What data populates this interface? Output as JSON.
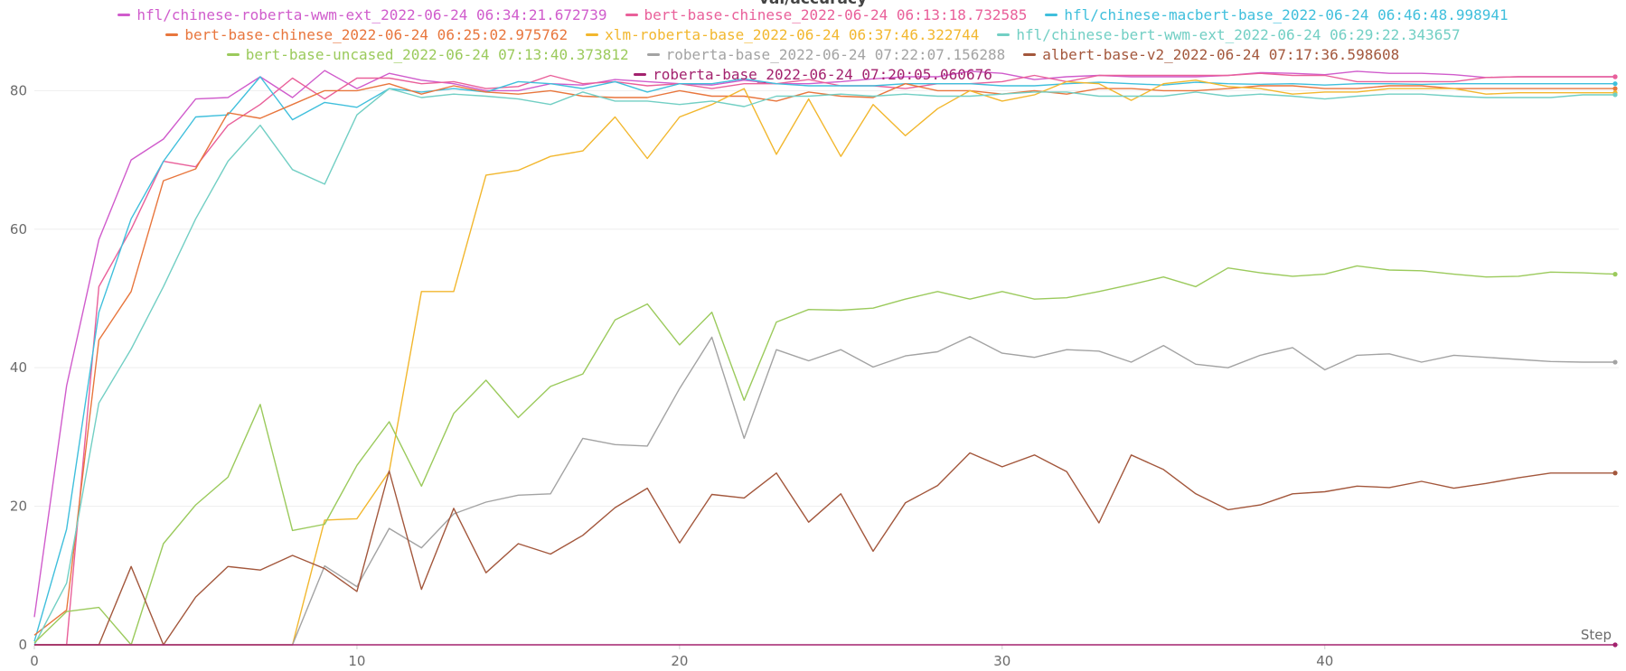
{
  "chart_data": {
    "type": "line",
    "title": "val/accuracy",
    "x_label": "Step",
    "x": [
      0,
      1,
      2,
      3,
      4,
      5,
      6,
      7,
      8,
      9,
      10,
      11,
      12,
      13,
      14,
      15,
      16,
      17,
      18,
      19,
      20,
      21,
      22,
      23,
      24,
      25,
      26,
      27,
      28,
      29,
      30,
      31,
      32,
      33,
      34,
      35,
      36,
      37,
      38,
      39,
      40,
      41,
      42,
      43,
      44,
      45,
      46,
      47,
      48,
      49
    ],
    "xlim": [
      0,
      49
    ],
    "xticks": [
      0,
      10,
      20,
      30,
      40
    ],
    "ylim": [
      0,
      85
    ],
    "yticks": [
      0,
      20,
      40,
      60,
      80
    ],
    "grid": true,
    "series": [
      {
        "name": "hfl/chinese-roberta-wwm-ext_2022-06-24 06:34:21.672739",
        "color": "#d05ccc",
        "values": [
          4,
          37.4,
          58.5,
          70,
          73,
          78.8,
          79,
          82,
          79,
          82.9,
          80.3,
          82.5,
          81.5,
          81,
          80,
          80,
          81,
          80.8,
          81.6,
          81.3,
          81,
          80.8,
          81.5,
          81,
          81,
          81.3,
          81.7,
          82,
          82,
          82.8,
          82.5,
          81.6,
          82,
          82.2,
          82,
          82,
          82,
          82.2,
          82.6,
          82.5,
          82.3,
          82.8,
          82.5,
          82.5,
          82.3,
          81.9,
          82,
          82,
          82,
          82
        ]
      },
      {
        "name": "bert-base-chinese_2022-06-24 06:13:18.732585",
        "color": "#e9609a",
        "values": [
          0,
          0,
          51.7,
          60,
          69.8,
          69,
          75,
          78,
          81.8,
          78.8,
          81.8,
          81.8,
          81,
          81.3,
          80.3,
          80.6,
          82.2,
          81,
          81.3,
          80.7,
          81,
          80.3,
          81,
          81,
          81.6,
          80.7,
          80.7,
          80.3,
          81,
          81,
          81.3,
          82.2,
          81.3,
          82.2,
          82.2,
          82.2,
          82.2,
          82.2,
          82.5,
          82.2,
          82.2,
          81.3,
          81.3,
          81.3,
          81.3,
          81.9,
          82,
          82,
          82,
          82
        ]
      },
      {
        "name": "hfl/chinese-macbert-base_2022-06-24 06:46:48.998941",
        "color": "#3fbfdc",
        "values": [
          0.5,
          16.7,
          48,
          61.5,
          69.8,
          76.2,
          76.5,
          82,
          75.8,
          78.3,
          77.6,
          80.3,
          79.8,
          80.3,
          79.8,
          81.3,
          81,
          80.3,
          81.3,
          79.8,
          81,
          81,
          81.7,
          81,
          80.7,
          80.7,
          80.7,
          81,
          81,
          81,
          80.7,
          80.7,
          81,
          81.2,
          81,
          80.8,
          81.2,
          81,
          80.9,
          81,
          80.8,
          81,
          81,
          80.9,
          81,
          81,
          81,
          81,
          81,
          81
        ]
      },
      {
        "name": "bert-base-chinese_2022-06-24 06:25:02.975762",
        "color": "#e8763d",
        "values": [
          1.4,
          5,
          44,
          51,
          67,
          68.7,
          76.8,
          76,
          78,
          80,
          80,
          81,
          79.5,
          80.7,
          79.8,
          79.5,
          80,
          79.2,
          79,
          79,
          80,
          79.2,
          79.2,
          78.5,
          79.8,
          79.2,
          79,
          81,
          80,
          80,
          79.5,
          80,
          79.5,
          80.3,
          80.3,
          80,
          80,
          80.3,
          80.7,
          80.7,
          80.3,
          80.3,
          80.7,
          80.7,
          80.3,
          80.3,
          80.3,
          80.3,
          80.3,
          80.3
        ]
      },
      {
        "name": "xlm-roberta-base_2022-06-24 06:37:46.322744",
        "color": "#f2b72e",
        "values": [
          0,
          0,
          0,
          0,
          0,
          0,
          0,
          0,
          0,
          18,
          18.2,
          25,
          51,
          51,
          67.8,
          68.5,
          70.5,
          71.3,
          76.2,
          70.2,
          76.2,
          78,
          80.3,
          70.8,
          78.8,
          70.5,
          78,
          73.5,
          77.4,
          80,
          78.5,
          79.4,
          81.3,
          81,
          78.6,
          81,
          81.5,
          80.6,
          80.3,
          79.5,
          79.8,
          79.8,
          80.3,
          80.3,
          80.3,
          79.5,
          79.7,
          79.7,
          79.7,
          79.7
        ]
      },
      {
        "name": "hfl/chinese-bert-wwm-ext_2022-06-24 06:29:22.343657",
        "color": "#72cfc4",
        "values": [
          0,
          8.9,
          34.9,
          42.7,
          51.7,
          61.5,
          69.8,
          75,
          68.6,
          66.5,
          76.5,
          80.3,
          79,
          79.5,
          79.2,
          78.8,
          78,
          79.8,
          78.5,
          78.5,
          78,
          78.5,
          77.7,
          79.2,
          79.2,
          79.5,
          79.2,
          79.5,
          79.2,
          79.2,
          79.5,
          79.8,
          79.8,
          79.2,
          79.2,
          79.2,
          79.8,
          79.2,
          79.5,
          79.2,
          78.8,
          79.2,
          79.5,
          79.5,
          79.2,
          79,
          79,
          79,
          79.4,
          79.4
        ]
      },
      {
        "name": "bert-base-uncased_2022-06-24 07:13:40.373812",
        "color": "#9bca5c",
        "values": [
          0.3,
          4.8,
          5.4,
          0,
          14.6,
          20.2,
          24.2,
          34.7,
          16.5,
          17.4,
          25.9,
          32.2,
          22.9,
          33.4,
          38.2,
          32.8,
          37.3,
          39.1,
          46.9,
          49.2,
          43.3,
          48,
          35.3,
          46.6,
          48.4,
          48.3,
          48.6,
          49.9,
          51,
          49.9,
          51,
          49.9,
          50.1,
          51,
          52,
          53.1,
          51.7,
          54.4,
          53.7,
          53.2,
          53.5,
          54.7,
          54.1,
          54,
          53.5,
          53.1,
          53.2,
          53.8,
          53.7,
          53.5
        ]
      },
      {
        "name": "roberta-base_2022-06-24 07:22:07.156288",
        "color": "#a3a3a3",
        "values": [
          0,
          0,
          0,
          0,
          0,
          0,
          0,
          0,
          0,
          11.4,
          8.4,
          16.8,
          14,
          18.9,
          20.6,
          21.6,
          21.8,
          29.8,
          28.9,
          28.7,
          37,
          44.4,
          29.8,
          42.6,
          41,
          42.6,
          40.1,
          41.7,
          42.3,
          44.5,
          42.1,
          41.5,
          42.6,
          42.4,
          40.8,
          43.2,
          40.5,
          40,
          41.8,
          42.9,
          39.7,
          41.8,
          42,
          40.8,
          41.8,
          41.5,
          41.2,
          40.9,
          40.8,
          40.8
        ]
      },
      {
        "name": "albert-base-v2_2022-06-24 07:17:36.598608",
        "color": "#a3573c",
        "values": [
          0,
          0,
          0,
          11.3,
          0,
          6.9,
          11.3,
          10.8,
          12.9,
          11,
          7.7,
          25.1,
          8,
          19.7,
          10.4,
          14.6,
          13.1,
          15.8,
          19.8,
          22.6,
          14.7,
          21.7,
          21.2,
          24.8,
          17.7,
          21.8,
          13.5,
          20.5,
          23,
          27.7,
          25.7,
          27.4,
          25,
          17.6,
          27.4,
          25.3,
          21.8,
          19.5,
          20.2,
          21.8,
          22.1,
          22.9,
          22.7,
          23.6,
          22.6,
          23.3,
          24.1,
          24.8,
          24.8,
          24.8
        ]
      },
      {
        "name": "roberta-base_2022-06-24 07:20:05.060676",
        "color": "#a3226e",
        "values": [
          0,
          0,
          0,
          0,
          0,
          0,
          0,
          0,
          0,
          0,
          0,
          0,
          0,
          0,
          0,
          0,
          0,
          0,
          0,
          0,
          0,
          0,
          0,
          0,
          0,
          0,
          0,
          0,
          0,
          0,
          0,
          0,
          0,
          0,
          0,
          0,
          0,
          0,
          0,
          0,
          0,
          0,
          0,
          0,
          0,
          0,
          0,
          0,
          0,
          0
        ]
      }
    ]
  }
}
